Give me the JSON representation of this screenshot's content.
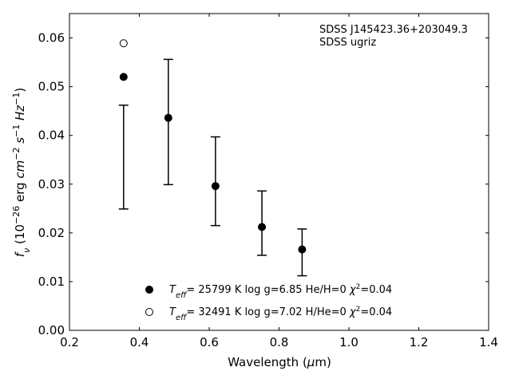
{
  "chart_data": {
    "type": "scatter",
    "xlim": [
      0.2,
      1.4
    ],
    "ylim": [
      0.0,
      0.065
    ],
    "xticks": [
      0.2,
      0.4,
      0.6,
      0.8,
      1.0,
      1.2,
      1.4
    ],
    "yticks": [
      0.0,
      0.01,
      0.02,
      0.03,
      0.04,
      0.05,
      0.06
    ],
    "xtick_labels": [
      "0.2",
      "0.4",
      "0.6",
      "0.8",
      "1.0",
      "1.2",
      "1.4"
    ],
    "ytick_labels": [
      "0.00",
      "0.01",
      "0.02",
      "0.03",
      "0.04",
      "0.05",
      "0.06"
    ],
    "xlabel": {
      "main": "Wavelength (",
      "mu": "μ",
      "rest": "m)"
    },
    "ylabel": {
      "f": "f",
      "f_sub": "ν",
      "open": " (10",
      "exp": "−26",
      "erg": " erg ",
      "cm": "cm",
      "cm_exp": "−2",
      "s": " s",
      "s_exp": "−1",
      "hz": " Hz",
      "hz_exp": "−1",
      "close": ")"
    },
    "annotations": [
      "SDSS J145423.36+203049.3",
      "SDSS ugriz"
    ],
    "grid": false,
    "legend_position": "bottom-center",
    "errorbars": [
      {
        "x": 0.355,
        "lower": 0.0249,
        "upper": 0.0462
      },
      {
        "x": 0.483,
        "lower": 0.0299,
        "upper": 0.0556
      },
      {
        "x": 0.618,
        "lower": 0.0215,
        "upper": 0.0397
      },
      {
        "x": 0.751,
        "lower": 0.0154,
        "upper": 0.0286
      },
      {
        "x": 0.866,
        "lower": 0.0112,
        "upper": 0.0208
      }
    ],
    "series": [
      {
        "marker": "filled",
        "label": {
          "t": "T",
          "sub": "eff",
          "rest": "= 25799 K  log g=6.85  He/H=0  ",
          "chi": "χ",
          "chi_exp": "2",
          "end": "=0.04"
        },
        "x": [
          0.355,
          0.483,
          0.618,
          0.751,
          0.866
        ],
        "y": [
          0.052,
          0.0436,
          0.0296,
          0.0212,
          0.0166
        ]
      },
      {
        "marker": "open",
        "label": {
          "t": "T",
          "sub": "eff",
          "rest": "= 32491 K  log g=7.02  H/He=0  ",
          "chi": "χ",
          "chi_exp": "2",
          "end": "=0.04"
        },
        "x": [
          0.355
        ],
        "y": [
          0.0589
        ]
      }
    ]
  }
}
